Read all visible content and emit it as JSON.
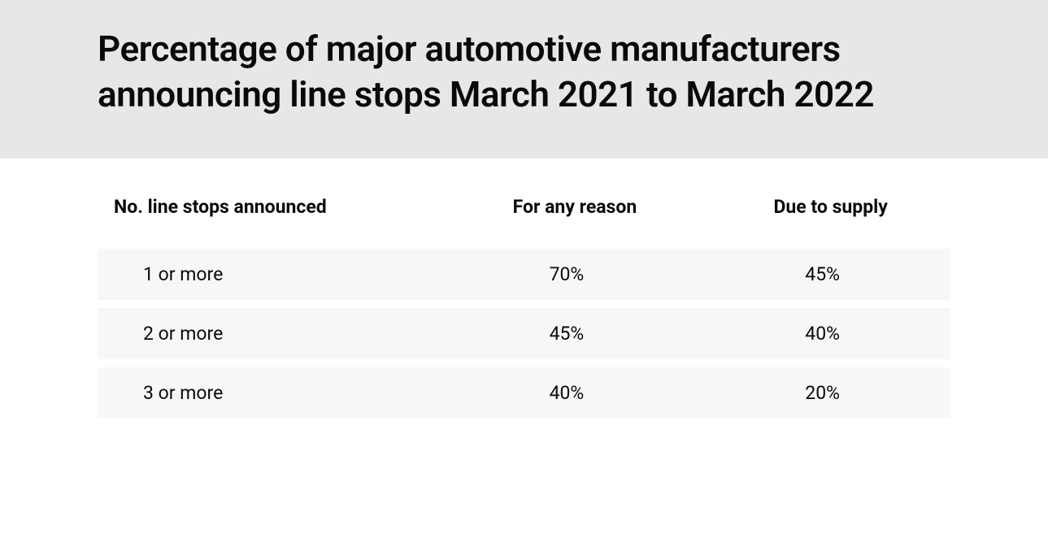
{
  "title": "Percentage of major automotive manufacturers announcing line stops March 2021 to March 2022",
  "table": {
    "type": "table",
    "columns": [
      "No. line stops announced",
      "For any reason",
      "Due to supply"
    ],
    "rows": [
      [
        "1 or more",
        "70%",
        "45%"
      ],
      [
        "2 or more",
        "45%",
        "40%"
      ],
      [
        "3 or more",
        "40%",
        "20%"
      ]
    ],
    "header_background": "#e8e7e7",
    "row_background": "#f8f7f6",
    "page_background": "#ffffff",
    "text_color": "#0a0a0a",
    "title_fontsize": 44,
    "header_fontsize": 23,
    "cell_fontsize": 23,
    "column_alignment": [
      "left",
      "center",
      "center"
    ],
    "column_widths_pct": [
      40,
      30,
      30
    ]
  }
}
